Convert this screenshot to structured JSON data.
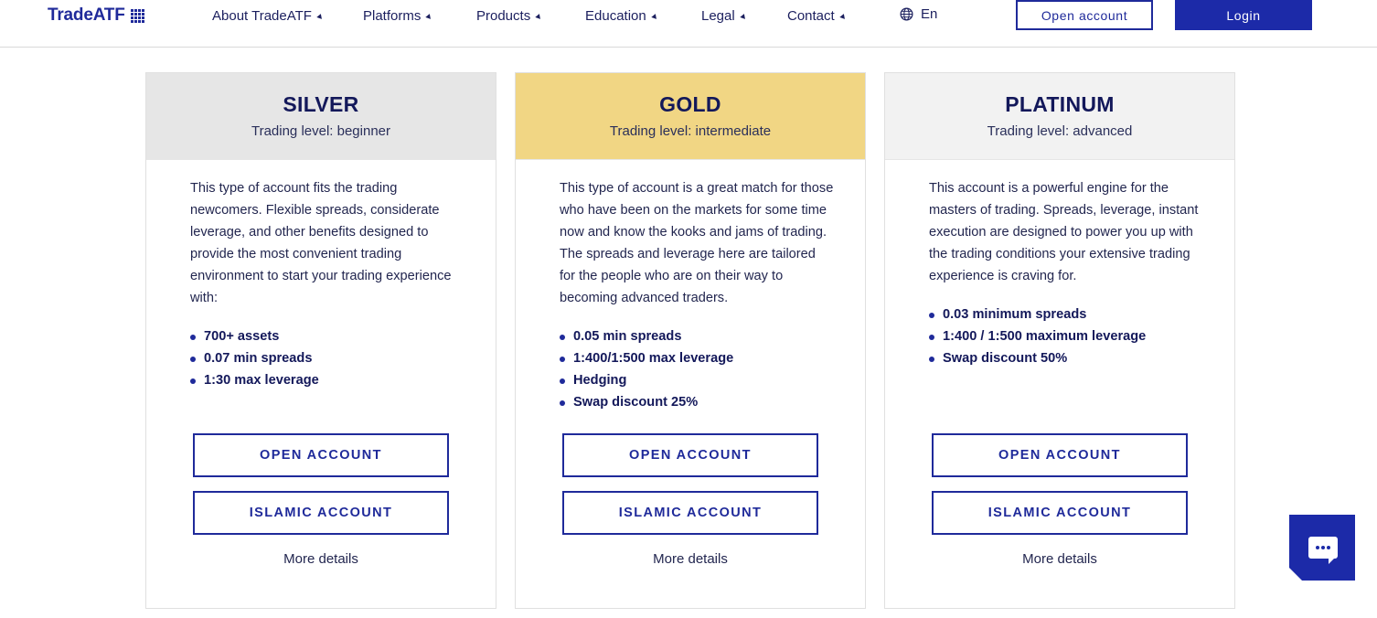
{
  "header": {
    "logo_text": "TradeATF",
    "nav": [
      {
        "label": "About TradeATF"
      },
      {
        "label": "Platforms"
      },
      {
        "label": "Products"
      },
      {
        "label": "Education"
      },
      {
        "label": "Legal"
      },
      {
        "label": "Contact"
      }
    ],
    "language": "En",
    "open_account_label": "Open account",
    "login_label": "Login"
  },
  "cards": [
    {
      "title": "SILVER",
      "subtitle": "Trading level: beginner",
      "header_color": "#e6e6e6",
      "description": "This type of account fits the trading newcomers. Flexible spreads, considerate leverage, and other benefits designed to provide the most convenient trading environment to start your trading experience with:",
      "features": [
        "700+ assets",
        "0.07 min spreads",
        "1:30 max leverage"
      ],
      "open_label": "OPEN ACCOUNT",
      "islamic_label": "ISLAMIC ACCOUNT",
      "more_label": "More details"
    },
    {
      "title": "GOLD",
      "subtitle": "Trading level: intermediate",
      "header_color": "#f1d684",
      "description": "This type of account is a great match for those who have been on the markets for some time now and know the kooks and jams of trading. The spreads and leverage here are tailored for the people who are on their way to becoming advanced traders.",
      "features": [
        "0.05 min spreads",
        "1:400/1:500 max leverage",
        "Hedging",
        "Swap discount 25%"
      ],
      "open_label": "OPEN ACCOUNT",
      "islamic_label": "ISLAMIC ACCOUNT",
      "more_label": "More details"
    },
    {
      "title": "PLATINUM",
      "subtitle": "Trading level: advanced",
      "header_color": "#f2f2f2",
      "description": "This account is a powerful engine for the masters of trading. Spreads, leverage, instant execution are designed to power you up with the trading conditions your extensive trading experience is craving for.",
      "features": [
        "0.03 minimum spreads",
        "1:400 / 1:500 maximum leverage",
        "Swap discount 50%"
      ],
      "open_label": "OPEN ACCOUNT",
      "islamic_label": "ISLAMIC ACCOUNT",
      "more_label": "More details"
    }
  ],
  "colors": {
    "brand": "#1f2a9a",
    "login_bg": "#1c2aa8",
    "text_dark": "#13185a"
  },
  "chat_widget": {
    "icon": "chat-bubble-icon"
  }
}
